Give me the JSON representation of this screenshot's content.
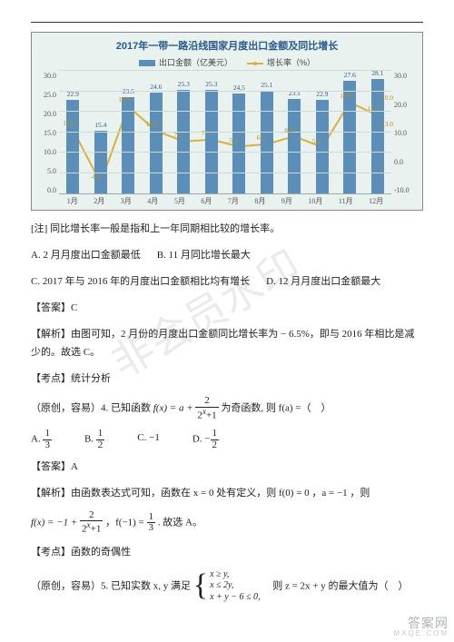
{
  "chart": {
    "title": "2017年一带一路沿线国家月度出口金额及同比增长",
    "legend_bar": "出口金额（亿美元）",
    "legend_line": "增长率（%）",
    "months": [
      "1月",
      "2月",
      "3月",
      "4月",
      "5月",
      "6月",
      "7月",
      "8月",
      "9月",
      "10月",
      "11月",
      "12月"
    ],
    "bar_values": [
      22.9,
      15.4,
      23.5,
      24.6,
      25.3,
      25.3,
      24.5,
      25.1,
      23.1,
      22.9,
      27.6,
      28.1
    ],
    "line_values": [
      11.0,
      -6.5,
      18.6,
      10.6,
      7.1,
      7.7,
      5.4,
      6.2,
      8.8,
      5.2,
      19.9,
      15.7
    ],
    "line_extra": {
      "right_ref": "13.0",
      "right_ref2": "20.0"
    },
    "y_left": [
      "30.0",
      "25.0",
      "20.0",
      "15.0",
      "10.0",
      "5.0",
      "0.0"
    ],
    "y_right": [
      "30.0",
      "20.0",
      "10.0",
      "0.0",
      "-10.0"
    ],
    "colors": {
      "bar": "#5b8fb9",
      "line": "#d9b23b",
      "bg": "#eaf2ef",
      "grid": "#cfd9d6",
      "title": "#295a8e"
    }
  },
  "note": "[注] 同比增长率一般是指和上一年同期相比较的增长率。",
  "q3": {
    "A": "A. 2 月月度出口金额最低",
    "B": "B. 11 月同比增长最大",
    "C": "C. 2017 年与 2016 年的月度出口金额相比均有增长",
    "D": "D. 12 月月度出口金额最大"
  },
  "ans_label": "【答案】",
  "ans3": "C",
  "expl_label": "【解析】",
  "expl3": "由图可知，2 月份的月度出口金额同比增长率为 − 6.5%，即与 2016 年相比是减少的。故选 C。",
  "topic_label": "【考点】",
  "topic3": "统计分析",
  "q4_stem_a": "（原创，容易）4. 已知函数 ",
  "q4_stem_b": " 为奇函数, 则 f(a) =（　）",
  "q4_opts": {
    "A": "A.",
    "B": "B.",
    "C": "C. −1",
    "D": "D."
  },
  "ans4": "A",
  "expl4_a": "由函数表达式可知，函数在 x = 0 处有定义，则 f(0) = 0 ，a = −1 ，则",
  "expl4_b": "，f(−1) = ",
  "expl4_c": " . 故选 A。",
  "topic4": "函数的奇偶性",
  "q5_stem_a": "（原创，容易）5. 已知实数 x, y 满足 ",
  "q5_stem_b": "　则 z = 2x + y 的最大值为（　）",
  "sys": {
    "l1": "x ≥ y,",
    "l2": "x ≤ 2y,",
    "l3": "x + y − 6 ≤ 0,"
  },
  "watermark": "非会员水印",
  "footer_big": "答案网",
  "footer_small": "MXQE.COM"
}
